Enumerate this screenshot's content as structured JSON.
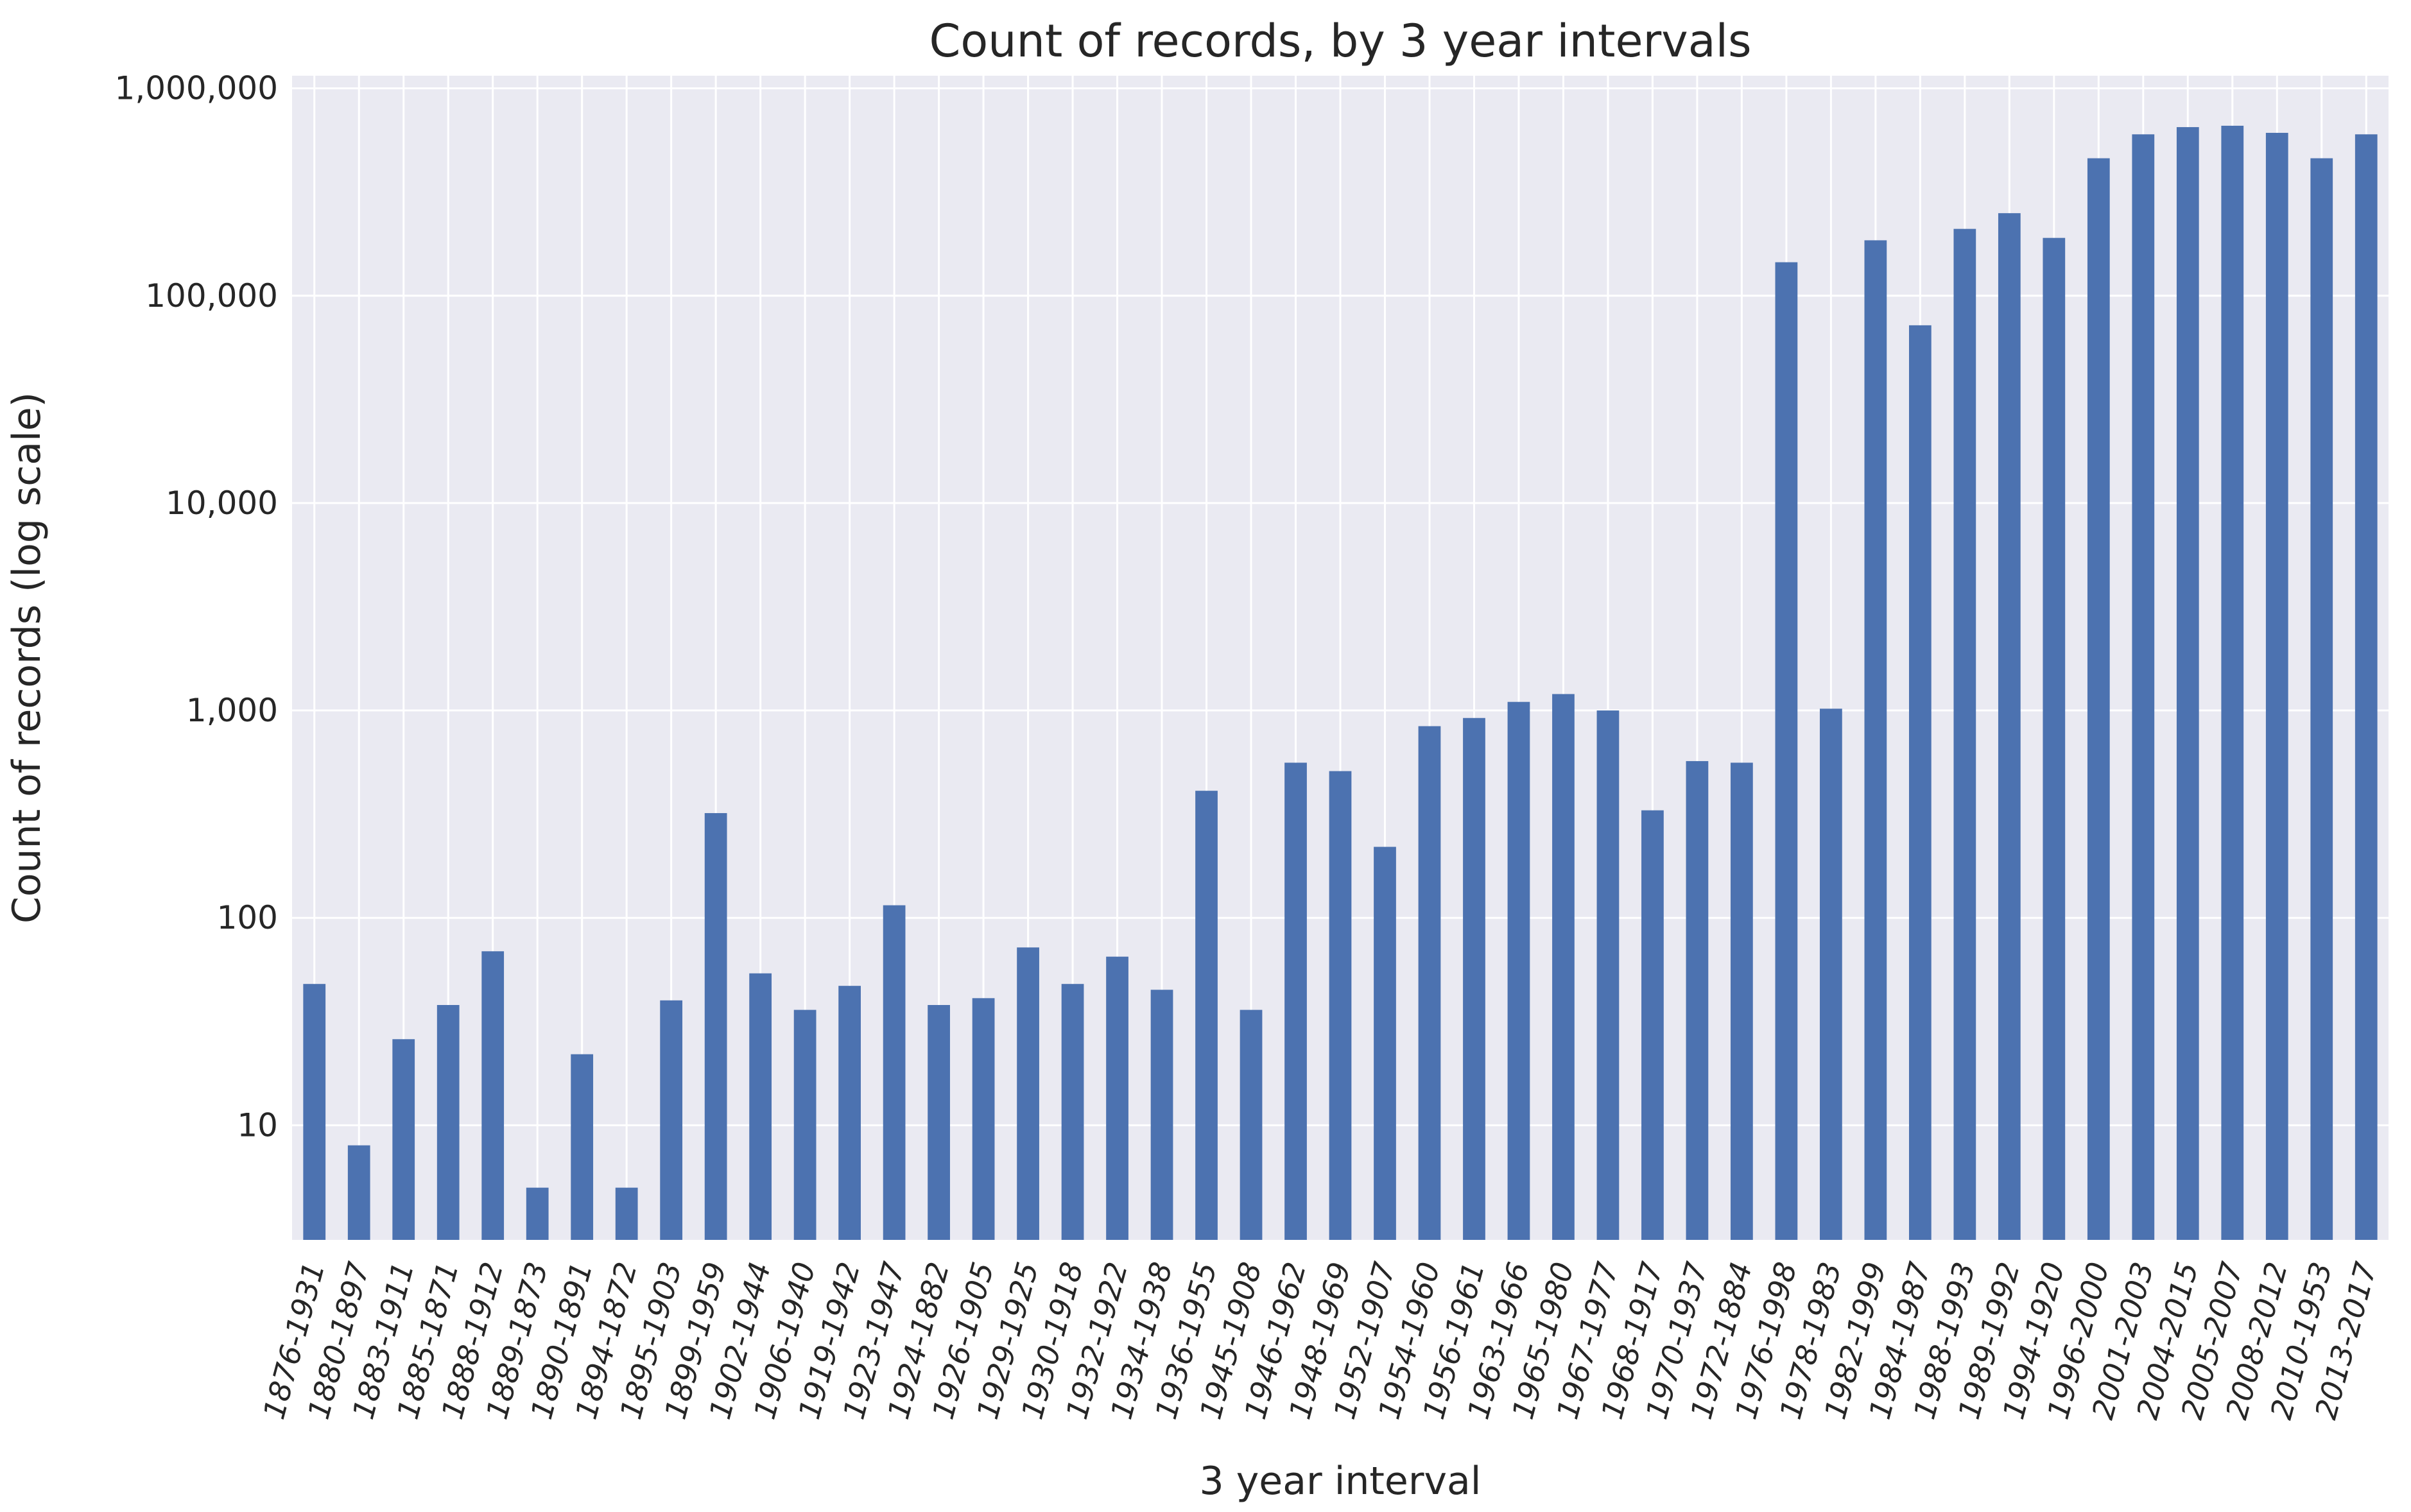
{
  "chart_data": {
    "type": "bar",
    "title": "Count of records, by 3 year intervals",
    "xlabel": "3 year interval",
    "ylabel": "Count of records (log scale)",
    "yscale": "log",
    "ylim": [
      2.8,
      1150000
    ],
    "yticks": [
      10,
      100,
      1000,
      10000,
      100000,
      1000000
    ],
    "ytick_labels": [
      "10",
      "100",
      "1,000",
      "10,000",
      "100,000",
      "1,000,000"
    ],
    "grid": true,
    "legend": "none",
    "colors": {
      "bar": "#4c72b0",
      "plot_background": "#eaeaf2",
      "grid": "#ffffff",
      "text": "#262626"
    },
    "categories": [
      "1876-1931",
      "1880-1897",
      "1883-1911",
      "1885-1871",
      "1888-1912",
      "1889-1873",
      "1890-1891",
      "1894-1872",
      "1895-1903",
      "1899-1959",
      "1902-1944",
      "1906-1940",
      "1919-1942",
      "1923-1947",
      "1924-1882",
      "1926-1905",
      "1929-1925",
      "1930-1918",
      "1932-1922",
      "1934-1938",
      "1936-1955",
      "1945-1908",
      "1946-1962",
      "1948-1969",
      "1952-1907",
      "1954-1960",
      "1956-1961",
      "1963-1966",
      "1965-1980",
      "1967-1977",
      "1968-1917",
      "1970-1937",
      "1972-1884",
      "1976-1998",
      "1978-1983",
      "1982-1999",
      "1984-1987",
      "1988-1993",
      "1989-1992",
      "1994-1920",
      "1996-2000",
      "2001-2003",
      "2004-2015",
      "2005-2007",
      "2008-2012",
      "2010-1953",
      "2013-2017"
    ],
    "values": [
      48,
      8,
      26,
      38,
      69,
      5,
      22,
      5,
      40,
      320,
      54,
      36,
      47,
      115,
      38,
      41,
      72,
      48,
      65,
      45,
      410,
      36,
      560,
      510,
      220,
      840,
      920,
      1100,
      1200,
      1000,
      330,
      570,
      560,
      145000,
      1020,
      185000,
      72000,
      210000,
      250000,
      190000,
      460000,
      600000,
      650000,
      660000,
      610000,
      460000,
      600000
    ]
  }
}
